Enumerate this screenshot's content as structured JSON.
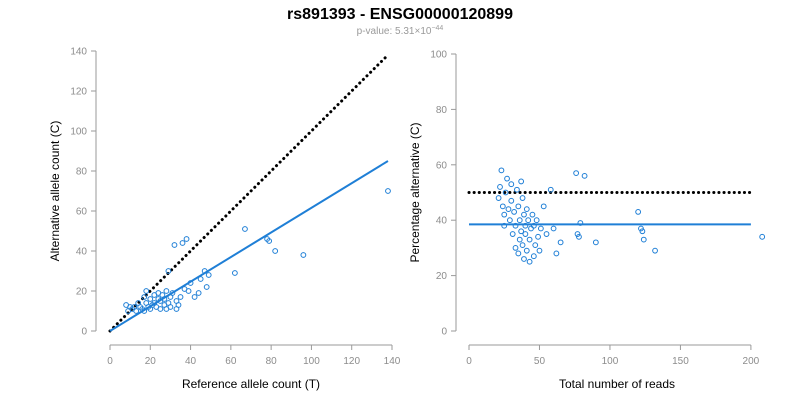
{
  "title": "rs891393 - ENSG00000120899",
  "subtitle": {
    "prefix": "p-value: ",
    "mantissa": "5.31",
    "times": "×10",
    "exponent": "−44"
  },
  "colors": {
    "points": "#1f7fd6",
    "fit_line": "#1f7fd6",
    "reference_line": "#000000",
    "axis": "#9a9a9a"
  },
  "chart_data": [
    {
      "type": "scatter",
      "title": "",
      "xlabel": "Reference allele count (T)",
      "ylabel": "Alternative allele count (C)",
      "xlim": [
        0,
        140
      ],
      "ylim": [
        0,
        140
      ],
      "xticks": [
        0,
        20,
        40,
        60,
        80,
        100,
        120,
        140
      ],
      "yticks": [
        0,
        20,
        40,
        60,
        80,
        100,
        120,
        140
      ],
      "grid": false,
      "reference_line": {
        "style": "dotted",
        "color": "#000000",
        "x": [
          0,
          138
        ],
        "y": [
          0,
          138
        ]
      },
      "fit_line": {
        "style": "solid",
        "color": "#1f7fd6",
        "x": [
          0,
          138
        ],
        "y": [
          0,
          85
        ]
      },
      "points": [
        [
          8,
          13
        ],
        [
          9,
          10
        ],
        [
          10,
          12
        ],
        [
          11,
          11
        ],
        [
          12,
          12
        ],
        [
          13,
          10
        ],
        [
          14,
          14
        ],
        [
          15,
          12
        ],
        [
          16,
          11
        ],
        [
          17,
          17
        ],
        [
          17,
          10
        ],
        [
          18,
          20
        ],
        [
          18,
          14
        ],
        [
          19,
          12
        ],
        [
          20,
          16
        ],
        [
          20,
          11
        ],
        [
          21,
          13
        ],
        [
          22,
          18
        ],
        [
          22,
          14
        ],
        [
          23,
          12
        ],
        [
          24,
          19
        ],
        [
          24,
          16
        ],
        [
          25,
          11
        ],
        [
          25,
          15
        ],
        [
          26,
          18
        ],
        [
          27,
          13
        ],
        [
          27,
          16
        ],
        [
          28,
          11
        ],
        [
          28,
          20
        ],
        [
          29,
          30
        ],
        [
          29,
          14
        ],
        [
          30,
          12
        ],
        [
          30,
          17
        ],
        [
          31,
          19
        ],
        [
          32,
          43
        ],
        [
          33,
          15
        ],
        [
          33,
          11
        ],
        [
          34,
          13
        ],
        [
          35,
          17
        ],
        [
          36,
          44
        ],
        [
          37,
          21
        ],
        [
          38,
          46
        ],
        [
          39,
          20
        ],
        [
          40,
          24
        ],
        [
          42,
          17
        ],
        [
          44,
          19
        ],
        [
          45,
          26
        ],
        [
          47,
          30
        ],
        [
          48,
          22
        ],
        [
          49,
          28
        ],
        [
          62,
          29
        ],
        [
          67,
          51
        ],
        [
          78,
          46
        ],
        [
          79,
          45
        ],
        [
          82,
          40
        ],
        [
          96,
          38
        ],
        [
          138,
          70
        ]
      ]
    },
    {
      "type": "scatter",
      "title": "",
      "xlabel": "Total number of reads",
      "ylabel": "Percentage alternative (C)",
      "xlim": [
        0,
        210
      ],
      "ylim": [
        0,
        100
      ],
      "xticks": [
        0,
        50,
        100,
        150,
        200
      ],
      "yticks": [
        0,
        20,
        40,
        60,
        80,
        100
      ],
      "grid": false,
      "reference_line": {
        "style": "dotted",
        "color": "#000000",
        "x": [
          0,
          200
        ],
        "y": [
          50,
          50
        ]
      },
      "fit_line": {
        "style": "solid",
        "color": "#1f7fd6",
        "x": [
          0,
          200
        ],
        "y": [
          38.5,
          38.5
        ]
      },
      "points": [
        [
          21,
          48
        ],
        [
          22,
          52
        ],
        [
          23,
          58
        ],
        [
          24,
          45
        ],
        [
          25,
          42
        ],
        [
          25,
          38
        ],
        [
          26,
          50
        ],
        [
          27,
          55
        ],
        [
          28,
          44
        ],
        [
          29,
          40
        ],
        [
          30,
          53
        ],
        [
          30,
          47
        ],
        [
          31,
          35
        ],
        [
          32,
          43
        ],
        [
          33,
          38
        ],
        [
          33,
          30
        ],
        [
          34,
          51
        ],
        [
          35,
          45
        ],
        [
          35,
          28
        ],
        [
          36,
          40
        ],
        [
          36,
          33
        ],
        [
          37,
          54
        ],
        [
          37,
          36
        ],
        [
          38,
          48
        ],
        [
          38,
          31
        ],
        [
          39,
          42
        ],
        [
          39,
          26
        ],
        [
          40,
          38
        ],
        [
          40,
          35
        ],
        [
          41,
          44
        ],
        [
          41,
          29
        ],
        [
          42,
          40
        ],
        [
          43,
          33
        ],
        [
          43,
          25
        ],
        [
          44,
          37
        ],
        [
          45,
          42
        ],
        [
          46,
          27
        ],
        [
          46,
          38
        ],
        [
          47,
          31
        ],
        [
          48,
          40
        ],
        [
          49,
          34
        ],
        [
          50,
          29
        ],
        [
          51,
          37
        ],
        [
          53,
          45
        ],
        [
          55,
          35
        ],
        [
          58,
          51
        ],
        [
          60,
          37
        ],
        [
          62,
          28
        ],
        [
          65,
          32
        ],
        [
          76,
          57
        ],
        [
          77,
          35
        ],
        [
          78,
          34
        ],
        [
          79,
          39
        ],
        [
          82,
          56
        ],
        [
          90,
          32
        ],
        [
          120,
          43
        ],
        [
          122,
          37
        ],
        [
          123,
          36
        ],
        [
          124,
          33
        ],
        [
          132,
          29
        ],
        [
          208,
          34
        ]
      ]
    }
  ]
}
